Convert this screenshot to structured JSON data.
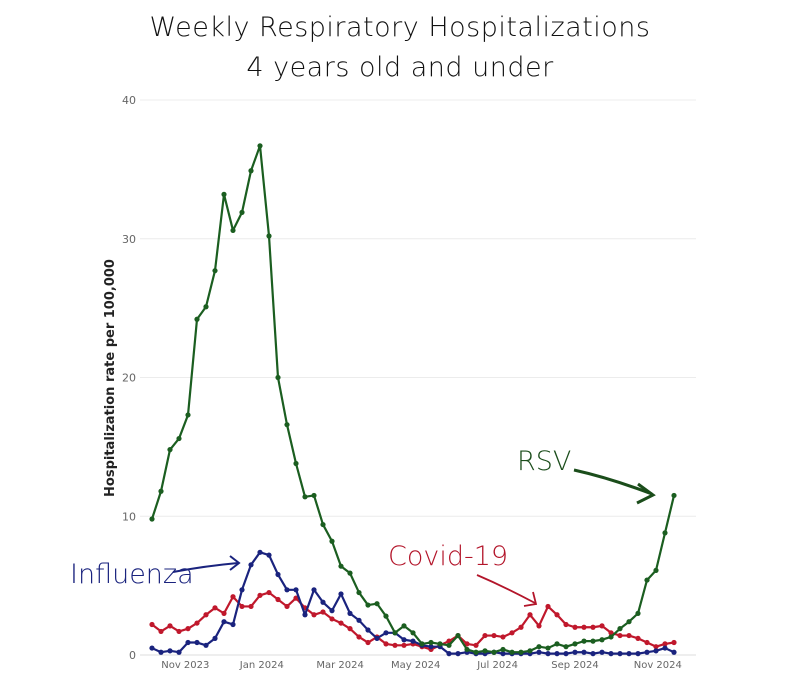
{
  "chart_data": {
    "type": "line",
    "title": "Weekly Respiratory Hospitalizations",
    "subtitle": "4 years old and under",
    "xlabel": "",
    "ylabel": "Hospitalization rate per 100,000",
    "ylim": [
      0,
      40
    ],
    "yticks": [
      0,
      10,
      20,
      30,
      40
    ],
    "grid": true,
    "x_unit": "week index (weekly, starting early Oct 2023)",
    "xlim": [
      0,
      58
    ],
    "xticks": [
      {
        "x": 3.7,
        "label": "Nov 2023"
      },
      {
        "x": 12.2,
        "label": "Jan 2024"
      },
      {
        "x": 20.9,
        "label": "Mar 2024"
      },
      {
        "x": 29.3,
        "label": "May 2024"
      },
      {
        "x": 38.4,
        "label": "Jul 2024"
      },
      {
        "x": 47.0,
        "label": "Sep 2024"
      },
      {
        "x": 56.2,
        "label": "Nov 2024"
      }
    ],
    "series": [
      {
        "name": "RSV",
        "color": "#1b5e20",
        "label_color": "#1b4d1b",
        "values": [
          9.8,
          11.8,
          14.8,
          15.6,
          17.3,
          24.2,
          25.1,
          27.7,
          33.2,
          30.6,
          31.9,
          34.9,
          36.7,
          30.2,
          20.0,
          16.6,
          13.8,
          11.4,
          11.5,
          9.4,
          8.2,
          6.4,
          5.9,
          4.5,
          3.6,
          3.7,
          2.8,
          1.6,
          2.1,
          1.6,
          0.8,
          0.9,
          0.8,
          0.7,
          1.4,
          0.4,
          0.2,
          0.3,
          0.2,
          0.4,
          0.2,
          0.2,
          0.3,
          0.6,
          0.5,
          0.8,
          0.6,
          0.8,
          1.0,
          1.0,
          1.1,
          1.3,
          1.9,
          2.4,
          3.0,
          5.4,
          6.1,
          8.8,
          11.5
        ]
      },
      {
        "name": "Influenza",
        "color": "#1a237e",
        "label_color": "#1a237e",
        "values": [
          0.5,
          0.2,
          0.3,
          0.2,
          0.9,
          0.9,
          0.7,
          1.2,
          2.4,
          2.2,
          4.7,
          6.5,
          7.4,
          7.2,
          5.8,
          4.7,
          4.7,
          2.9,
          4.7,
          3.8,
          3.2,
          4.4,
          3.0,
          2.5,
          1.8,
          1.2,
          1.6,
          1.6,
          1.1,
          1.0,
          0.7,
          0.6,
          0.6,
          0.1,
          0.1,
          0.2,
          0.1,
          0.1,
          0.2,
          0.1,
          0.1,
          0.1,
          0.1,
          0.2,
          0.1,
          0.1,
          0.1,
          0.2,
          0.2,
          0.1,
          0.2,
          0.1,
          0.1,
          0.1,
          0.1,
          0.2,
          0.3,
          0.5,
          0.2
        ]
      },
      {
        "name": "Covid-19",
        "color": "#c0182c",
        "label_color": "#b3152a",
        "values": [
          2.2,
          1.7,
          2.1,
          1.7,
          1.9,
          2.3,
          2.9,
          3.4,
          3.0,
          4.2,
          3.5,
          3.5,
          4.3,
          4.5,
          4.0,
          3.5,
          4.1,
          3.4,
          2.9,
          3.1,
          2.6,
          2.3,
          1.9,
          1.3,
          0.9,
          1.3,
          0.8,
          0.7,
          0.7,
          0.8,
          0.6,
          0.4,
          0.7,
          1.0,
          1.4,
          0.8,
          0.7,
          1.4,
          1.4,
          1.3,
          1.6,
          2.0,
          2.9,
          2.1,
          3.5,
          2.9,
          2.2,
          2.0,
          2.0,
          2.0,
          2.1,
          1.6,
          1.4,
          1.4,
          1.2,
          0.9,
          0.6,
          0.8,
          0.9
        ]
      }
    ],
    "annotations": [
      "RSV",
      "Influenza",
      "Covid-19"
    ]
  }
}
